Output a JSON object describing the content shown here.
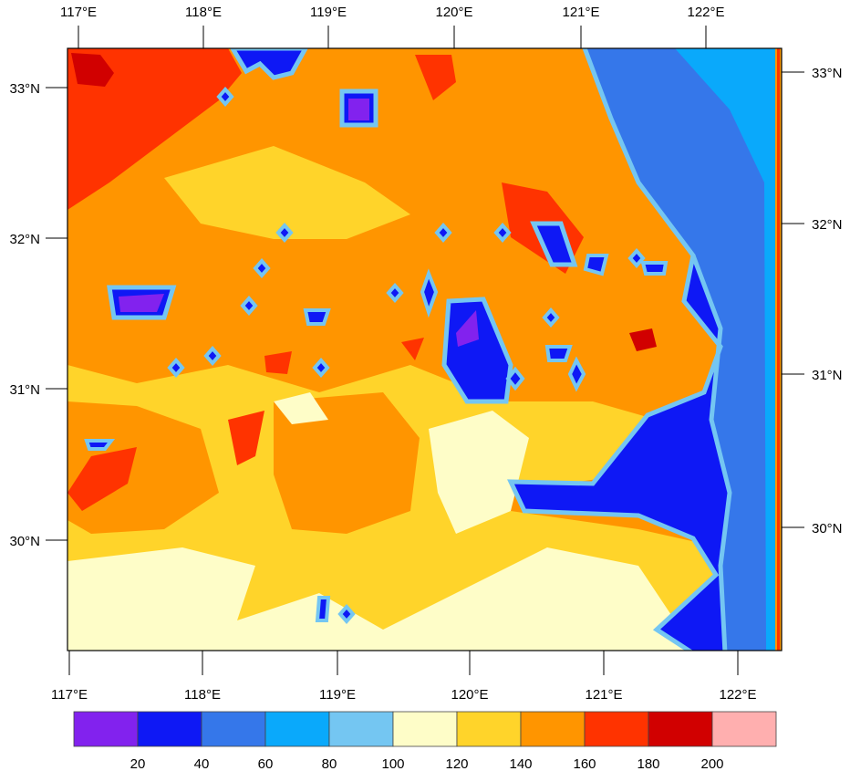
{
  "map": {
    "top_lon_labels": [
      "117°E",
      "118°E",
      "119°E",
      "120°E",
      "121°E",
      "122°E"
    ],
    "bottom_lon_labels": [
      "117°E",
      "118°E",
      "119°E",
      "120°E",
      "121°E",
      "122°E"
    ],
    "left_lat_labels": [
      "33°N",
      "32°N",
      "31°N",
      "30°N"
    ],
    "right_lat_labels": [
      "33°N",
      "32°N",
      "31°N",
      "30°N"
    ]
  },
  "colorbar": {
    "levels": [
      "20",
      "40",
      "60",
      "80",
      "100",
      "120",
      "140",
      "160",
      "180",
      "200"
    ],
    "colors": [
      "#8222ee",
      "#0e18f5",
      "#3577ea",
      "#0aa9fb",
      "#74c6f2",
      "#fefdc8",
      "#ffd42a",
      "#ff9500",
      "#ff3300",
      "#d10000",
      "#ffafaf"
    ]
  }
}
